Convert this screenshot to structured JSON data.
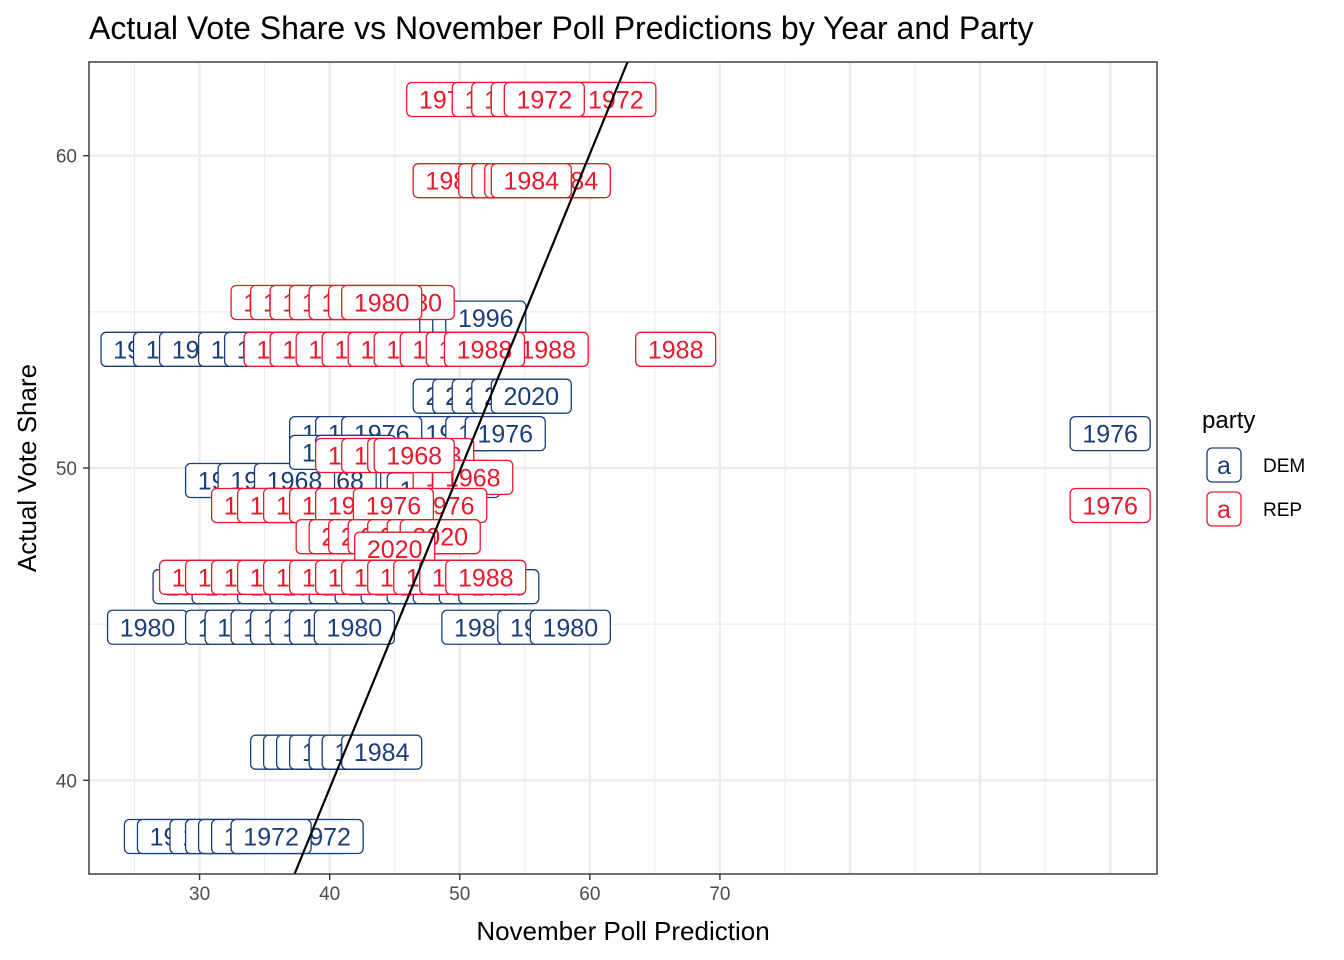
{
  "chart_data": {
    "type": "scatter",
    "title": "Actual Vote Share vs November Poll Predictions by Year and Party",
    "xlabel": "November Poll Prediction",
    "ylabel": "Actual Vote Share",
    "xlim": [
      21.5,
      103.6
    ],
    "ylim": [
      37,
      63
    ],
    "x_ticks": [
      30,
      40,
      50,
      60,
      70
    ],
    "y_ticks": [
      40,
      50,
      60
    ],
    "grid": true,
    "legend": {
      "title": "party",
      "position": "right",
      "glyph": "a",
      "entries": [
        {
          "name": "DEM",
          "color": "#1a3e7a"
        },
        {
          "name": "REP",
          "color": "#e8192c"
        }
      ]
    },
    "trend_line": {
      "x": [
        37.3,
        62.9
      ],
      "y": [
        37,
        63
      ]
    },
    "series": [
      {
        "name": "DEM",
        "color": "#1a3e7a",
        "points": [
          {
            "x": 45.0,
            "y": 49.6,
            "label": "1968"
          },
          {
            "x": 47.0,
            "y": 49.6,
            "label": "1968"
          },
          {
            "x": 50.0,
            "y": 49.6,
            "label": "1968"
          },
          {
            "x": 40.5,
            "y": 49.6,
            "label": "1968"
          },
          {
            "x": 32.0,
            "y": 49.6,
            "label": "1968"
          },
          {
            "x": 34.5,
            "y": 49.6,
            "label": "1968"
          },
          {
            "x": 37.3,
            "y": 49.6,
            "label": "1968"
          },
          {
            "x": 27.3,
            "y": 38.2,
            "label": "1972"
          },
          {
            "x": 28.3,
            "y": 38.2,
            "label": "1972"
          },
          {
            "x": 30.8,
            "y": 38.2,
            "label": "1972"
          },
          {
            "x": 32.0,
            "y": 38.2,
            "label": "1972"
          },
          {
            "x": 33.0,
            "y": 38.2,
            "label": "1972"
          },
          {
            "x": 34.0,
            "y": 38.2,
            "label": "1972"
          },
          {
            "x": 38.5,
            "y": 38.2,
            "label": "1972"
          },
          {
            "x": 39.5,
            "y": 38.2,
            "label": "1972"
          },
          {
            "x": 35.5,
            "y": 38.2,
            "label": "1972"
          },
          {
            "x": 100.0,
            "y": 51.1,
            "label": "1976"
          },
          {
            "x": 45.0,
            "y": 51.1,
            "label": "1976"
          },
          {
            "x": 49.5,
            "y": 51.1,
            "label": "1976"
          },
          {
            "x": 52.0,
            "y": 51.1,
            "label": "1976"
          },
          {
            "x": 53.5,
            "y": 51.1,
            "label": "1976"
          },
          {
            "x": 40.0,
            "y": 51.1,
            "label": "1976"
          },
          {
            "x": 42.0,
            "y": 51.1,
            "label": "1976"
          },
          {
            "x": 44.0,
            "y": 51.1,
            "label": "1976"
          },
          {
            "x": 40.0,
            "y": 50.5,
            "label": "1976"
          },
          {
            "x": 42.0,
            "y": 50.5,
            "label": "1976"
          },
          {
            "x": 47.5,
            "y": 49.3,
            "label": "1976"
          },
          {
            "x": 48.0,
            "y": 48.6,
            "label": "1976"
          },
          {
            "x": 26.0,
            "y": 44.9,
            "label": "1980"
          },
          {
            "x": 32.0,
            "y": 44.9,
            "label": "1980"
          },
          {
            "x": 33.5,
            "y": 44.9,
            "label": "1980"
          },
          {
            "x": 35.5,
            "y": 44.9,
            "label": "1980"
          },
          {
            "x": 37.0,
            "y": 44.9,
            "label": "1980"
          },
          {
            "x": 38.5,
            "y": 44.9,
            "label": "1980"
          },
          {
            "x": 40.0,
            "y": 44.9,
            "label": "1980"
          },
          {
            "x": 41.9,
            "y": 44.9,
            "label": "1980"
          },
          {
            "x": 51.7,
            "y": 44.9,
            "label": "1980"
          },
          {
            "x": 56.0,
            "y": 44.9,
            "label": "1980"
          },
          {
            "x": 58.5,
            "y": 44.9,
            "label": "1980"
          },
          {
            "x": 25.5,
            "y": 53.8,
            "label": "1980"
          },
          {
            "x": 28.0,
            "y": 53.8,
            "label": "1980"
          },
          {
            "x": 30.0,
            "y": 53.8,
            "label": "1980"
          },
          {
            "x": 33.0,
            "y": 53.8,
            "label": "1980"
          },
          {
            "x": 35.0,
            "y": 53.8,
            "label": "1980"
          },
          {
            "x": 50.0,
            "y": 53.8,
            "label": "1980"
          },
          {
            "x": 52.0,
            "y": 53.8,
            "label": "1980"
          },
          {
            "x": 37.0,
            "y": 40.9,
            "label": "1984"
          },
          {
            "x": 38.0,
            "y": 40.9,
            "label": "1984"
          },
          {
            "x": 39.0,
            "y": 40.9,
            "label": "1984"
          },
          {
            "x": 40.0,
            "y": 40.9,
            "label": "1984"
          },
          {
            "x": 41.5,
            "y": 40.9,
            "label": "1984"
          },
          {
            "x": 42.5,
            "y": 40.9,
            "label": "1984"
          },
          {
            "x": 44.0,
            "y": 40.9,
            "label": "1984"
          },
          {
            "x": 29.5,
            "y": 46.2,
            "label": "1988"
          },
          {
            "x": 32.5,
            "y": 46.2,
            "label": "1988"
          },
          {
            "x": 36.0,
            "y": 46.2,
            "label": "1988"
          },
          {
            "x": 38.5,
            "y": 46.2,
            "label": "1988"
          },
          {
            "x": 41.5,
            "y": 46.2,
            "label": "1988"
          },
          {
            "x": 43.5,
            "y": 46.2,
            "label": "1988"
          },
          {
            "x": 45.5,
            "y": 46.2,
            "label": "1988"
          },
          {
            "x": 47.5,
            "y": 46.2,
            "label": "1988"
          },
          {
            "x": 49.5,
            "y": 46.2,
            "label": "1988"
          },
          {
            "x": 51.5,
            "y": 46.2,
            "label": "1988"
          },
          {
            "x": 53.0,
            "y": 46.2,
            "label": "1988"
          },
          {
            "x": 50.0,
            "y": 54.8,
            "label": "1996"
          },
          {
            "x": 51.0,
            "y": 54.8,
            "label": "1996"
          },
          {
            "x": 52.0,
            "y": 54.8,
            "label": "1996"
          },
          {
            "x": 49.5,
            "y": 52.3,
            "label": "2020"
          },
          {
            "x": 51.0,
            "y": 52.3,
            "label": "2020"
          },
          {
            "x": 52.5,
            "y": 52.3,
            "label": "2020"
          },
          {
            "x": 54.0,
            "y": 52.3,
            "label": "2020"
          },
          {
            "x": 55.5,
            "y": 52.3,
            "label": "2020"
          }
        ]
      },
      {
        "name": "REP",
        "color": "#e8192c",
        "points": [
          {
            "x": 49.0,
            "y": 61.8,
            "label": "1972"
          },
          {
            "x": 52.5,
            "y": 61.8,
            "label": "1972"
          },
          {
            "x": 54.0,
            "y": 61.8,
            "label": "1972"
          },
          {
            "x": 55.5,
            "y": 61.8,
            "label": "1972"
          },
          {
            "x": 57.0,
            "y": 61.8,
            "label": "1972"
          },
          {
            "x": 58.5,
            "y": 61.8,
            "label": "1972"
          },
          {
            "x": 60.0,
            "y": 61.8,
            "label": "1972"
          },
          {
            "x": 61.2,
            "y": 61.8,
            "label": "1972"
          },
          {
            "x": 62.0,
            "y": 61.8,
            "label": "1972"
          },
          {
            "x": 56.5,
            "y": 61.8,
            "label": "1972"
          },
          {
            "x": 49.5,
            "y": 59.2,
            "label": "1984"
          },
          {
            "x": 53.0,
            "y": 59.2,
            "label": "1984"
          },
          {
            "x": 54.0,
            "y": 59.2,
            "label": "1984"
          },
          {
            "x": 55.0,
            "y": 59.2,
            "label": "1984"
          },
          {
            "x": 56.5,
            "y": 59.2,
            "label": "1984"
          },
          {
            "x": 57.5,
            "y": 59.2,
            "label": "1984"
          },
          {
            "x": 58.5,
            "y": 59.2,
            "label": "1984"
          },
          {
            "x": 55.5,
            "y": 59.2,
            "label": "1984"
          },
          {
            "x": 35.5,
            "y": 55.3,
            "label": "1980"
          },
          {
            "x": 37.0,
            "y": 55.3,
            "label": "1980"
          },
          {
            "x": 38.5,
            "y": 55.3,
            "label": "1980"
          },
          {
            "x": 40.0,
            "y": 55.3,
            "label": "1980"
          },
          {
            "x": 41.5,
            "y": 55.3,
            "label": "1980"
          },
          {
            "x": 43.0,
            "y": 55.3,
            "label": "1980"
          },
          {
            "x": 45.5,
            "y": 55.3,
            "label": "1980"
          },
          {
            "x": 46.5,
            "y": 55.3,
            "label": "1980"
          },
          {
            "x": 44.0,
            "y": 55.3,
            "label": "1980"
          },
          {
            "x": 66.6,
            "y": 53.8,
            "label": "1988"
          },
          {
            "x": 36.5,
            "y": 53.8,
            "label": "1988"
          },
          {
            "x": 38.5,
            "y": 53.8,
            "label": "1988"
          },
          {
            "x": 40.5,
            "y": 53.8,
            "label": "1988"
          },
          {
            "x": 42.5,
            "y": 53.8,
            "label": "1988"
          },
          {
            "x": 44.5,
            "y": 53.8,
            "label": "1988"
          },
          {
            "x": 46.5,
            "y": 53.8,
            "label": "1988"
          },
          {
            "x": 48.5,
            "y": 53.8,
            "label": "1988"
          },
          {
            "x": 50.5,
            "y": 53.8,
            "label": "1988"
          },
          {
            "x": 54.0,
            "y": 53.8,
            "label": "1988"
          },
          {
            "x": 56.8,
            "y": 53.8,
            "label": "1988"
          },
          {
            "x": 51.9,
            "y": 53.8,
            "label": "1988"
          },
          {
            "x": 42.0,
            "y": 50.4,
            "label": "1968"
          },
          {
            "x": 44.0,
            "y": 50.4,
            "label": "1968"
          },
          {
            "x": 46.0,
            "y": 50.4,
            "label": "1968"
          },
          {
            "x": 48.0,
            "y": 50.4,
            "label": "1968"
          },
          {
            "x": 49.5,
            "y": 49.7,
            "label": "1968"
          },
          {
            "x": 51.0,
            "y": 49.7,
            "label": "1968"
          },
          {
            "x": 46.5,
            "y": 50.4,
            "label": "1968"
          },
          {
            "x": 100.0,
            "y": 48.8,
            "label": "1976"
          },
          {
            "x": 34.0,
            "y": 48.8,
            "label": "1976"
          },
          {
            "x": 36.0,
            "y": 48.8,
            "label": "1976"
          },
          {
            "x": 38.0,
            "y": 48.8,
            "label": "1976"
          },
          {
            "x": 40.0,
            "y": 48.8,
            "label": "1976"
          },
          {
            "x": 42.0,
            "y": 48.8,
            "label": "1976"
          },
          {
            "x": 47.5,
            "y": 48.8,
            "label": "1976"
          },
          {
            "x": 49.0,
            "y": 48.8,
            "label": "1976"
          },
          {
            "x": 44.9,
            "y": 48.8,
            "label": "1976"
          },
          {
            "x": 40.5,
            "y": 47.8,
            "label": "2020"
          },
          {
            "x": 41.5,
            "y": 47.8,
            "label": "2020"
          },
          {
            "x": 43.0,
            "y": 47.8,
            "label": "2020"
          },
          {
            "x": 44.5,
            "y": 47.8,
            "label": "2020"
          },
          {
            "x": 46.0,
            "y": 47.8,
            "label": "2020"
          },
          {
            "x": 47.5,
            "y": 47.8,
            "label": "2020"
          },
          {
            "x": 48.5,
            "y": 47.8,
            "label": "2020"
          },
          {
            "x": 45.0,
            "y": 47.4,
            "label": "2020"
          },
          {
            "x": 30.0,
            "y": 46.5,
            "label": "1988"
          },
          {
            "x": 32.0,
            "y": 46.5,
            "label": "1988"
          },
          {
            "x": 34.0,
            "y": 46.5,
            "label": "1988"
          },
          {
            "x": 36.0,
            "y": 46.5,
            "label": "1988"
          },
          {
            "x": 38.0,
            "y": 46.5,
            "label": "1988"
          },
          {
            "x": 40.0,
            "y": 46.5,
            "label": "1988"
          },
          {
            "x": 42.0,
            "y": 46.5,
            "label": "1988"
          },
          {
            "x": 44.0,
            "y": 46.5,
            "label": "1988"
          },
          {
            "x": 46.0,
            "y": 46.5,
            "label": "1988"
          },
          {
            "x": 48.0,
            "y": 46.5,
            "label": "1988"
          },
          {
            "x": 50.0,
            "y": 46.5,
            "label": "1988"
          },
          {
            "x": 52.0,
            "y": 46.5,
            "label": "1988"
          }
        ]
      }
    ]
  }
}
